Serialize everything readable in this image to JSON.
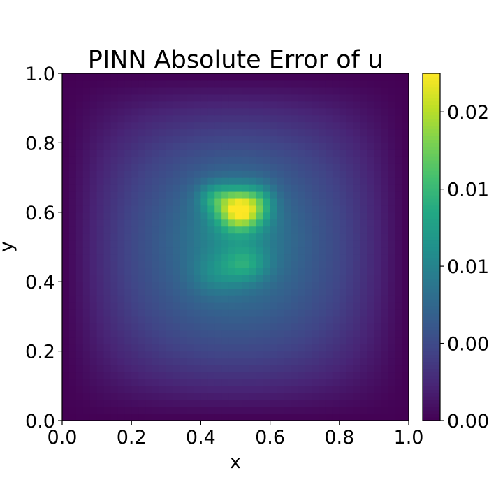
{
  "chart_data": {
    "type": "heatmap",
    "title": "PINN Absolute Error of u",
    "xlabel": "x",
    "ylabel": "y",
    "xlim": [
      0.0,
      1.0
    ],
    "ylim": [
      0.0,
      1.0
    ],
    "x_ticks": [
      0.0,
      0.2,
      0.4,
      0.6,
      0.8,
      1.0
    ],
    "y_ticks": [
      0.0,
      0.2,
      0.4,
      0.6,
      0.8,
      1.0
    ],
    "x_tick_labels": [
      "0.0",
      "0.2",
      "0.4",
      "0.6",
      "0.8",
      "1.0"
    ],
    "y_tick_labels": [
      "0.0",
      "0.2",
      "0.4",
      "0.6",
      "0.8",
      "1.0"
    ],
    "colormap": "viridis",
    "grid": false,
    "colorbar": {
      "vmin": 0.0,
      "vmax": 0.0225,
      "ticks": [
        0.0,
        0.005,
        0.01,
        0.015,
        0.02
      ],
      "tick_labels": [
        "0.00",
        "0.00",
        "0.01",
        "0.01",
        "0.02"
      ]
    },
    "grid_resolution": [
      50,
      50
    ],
    "field": {
      "description_free": true,
      "envelope_peak": 0.0078,
      "components": [
        {
          "cx": 0.515,
          "cy": 0.61,
          "sx": 0.045,
          "sy": 0.04,
          "amp": 0.0145
        },
        {
          "cx": 0.44,
          "cy": 0.645,
          "sx": 0.035,
          "sy": 0.03,
          "amp": 0.0045
        },
        {
          "cx": 0.575,
          "cy": 0.635,
          "sx": 0.03,
          "sy": 0.035,
          "amp": 0.003
        },
        {
          "cx": 0.53,
          "cy": 0.45,
          "sx": 0.045,
          "sy": 0.035,
          "amp": 0.0042
        },
        {
          "cx": 0.44,
          "cy": 0.42,
          "sx": 0.05,
          "sy": 0.04,
          "amp": 0.0022
        },
        {
          "cx": 0.5,
          "cy": 0.55,
          "sx": 0.1,
          "sy": 0.12,
          "amp": 0.0032
        }
      ]
    }
  }
}
